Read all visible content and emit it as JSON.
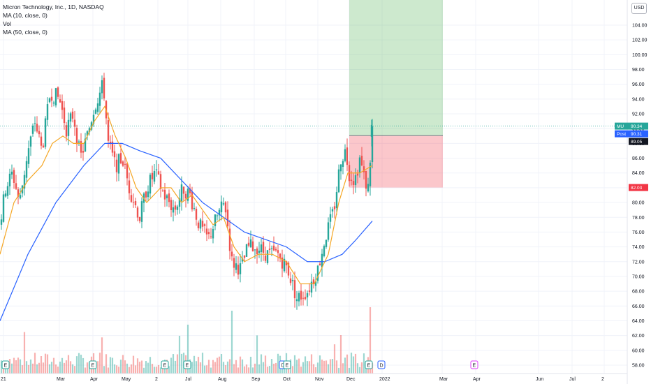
{
  "legend": {
    "title": "Micron Technology, Inc., 1D, NASDAQ",
    "ma10": "MA (10, close, 0)",
    "vol": "Vol",
    "ma50": "MA (50, close, 0)"
  },
  "currency": "USD",
  "chart_data": {
    "type": "candlestick",
    "symbol": "MU",
    "interval": "1D",
    "exchange": "NASDAQ",
    "ylim": [
      57,
      106
    ],
    "y_ticks": [
      "58.00",
      "60.00",
      "62.00",
      "64.00",
      "66.00",
      "68.00",
      "70.00",
      "72.00",
      "74.00",
      "76.00",
      "78.00",
      "80.00",
      "82.00",
      "84.00",
      "86.00",
      "88.00",
      "90.00",
      "92.00",
      "94.00",
      "96.00",
      "98.00",
      "100.00",
      "102.00",
      "104.00"
    ],
    "x_ticks": [
      "21",
      "Mar",
      "Apr",
      "May",
      "2",
      "Jul",
      "Aug",
      "Sep",
      "Oct",
      "Nov",
      "Dec",
      "2022",
      "Mar",
      "Apr",
      "Jun",
      "Jul",
      "2"
    ],
    "key_points": [
      {
        "t": 0,
        "p": 77
      },
      {
        "t": 8,
        "p": 82
      },
      {
        "t": 18,
        "p": 84
      },
      {
        "t": 28,
        "p": 80
      },
      {
        "t": 38,
        "p": 86
      },
      {
        "t": 50,
        "p": 91
      },
      {
        "t": 60,
        "p": 87
      },
      {
        "t": 72,
        "p": 95
      },
      {
        "t": 85,
        "p": 94
      },
      {
        "t": 95,
        "p": 90
      },
      {
        "t": 105,
        "p": 92
      },
      {
        "t": 115,
        "p": 86
      },
      {
        "t": 125,
        "p": 89
      },
      {
        "t": 135,
        "p": 93
      },
      {
        "t": 148,
        "p": 96
      },
      {
        "t": 155,
        "p": 88
      },
      {
        "t": 165,
        "p": 85
      },
      {
        "t": 175,
        "p": 86
      },
      {
        "t": 185,
        "p": 82
      },
      {
        "t": 200,
        "p": 78
      },
      {
        "t": 210,
        "p": 82
      },
      {
        "t": 222,
        "p": 84
      },
      {
        "t": 235,
        "p": 81
      },
      {
        "t": 250,
        "p": 79
      },
      {
        "t": 262,
        "p": 82
      },
      {
        "t": 272,
        "p": 81
      },
      {
        "t": 285,
        "p": 77
      },
      {
        "t": 298,
        "p": 75
      },
      {
        "t": 310,
        "p": 78
      },
      {
        "t": 322,
        "p": 80
      },
      {
        "t": 332,
        "p": 72
      },
      {
        "t": 345,
        "p": 71
      },
      {
        "t": 355,
        "p": 74
      },
      {
        "t": 368,
        "p": 74
      },
      {
        "t": 382,
        "p": 73
      },
      {
        "t": 398,
        "p": 73
      },
      {
        "t": 412,
        "p": 71
      },
      {
        "t": 425,
        "p": 67
      },
      {
        "t": 440,
        "p": 68
      },
      {
        "t": 455,
        "p": 71
      },
      {
        "t": 465,
        "p": 75
      },
      {
        "t": 478,
        "p": 79
      },
      {
        "t": 488,
        "p": 86
      },
      {
        "t": 495,
        "p": 87
      },
      {
        "t": 500,
        "p": 84
      },
      {
        "t": 508,
        "p": 83
      },
      {
        "t": 515,
        "p": 86
      },
      {
        "t": 522,
        "p": 83
      },
      {
        "t": 527,
        "p": 82
      },
      {
        "t": 533,
        "p": 90
      }
    ],
    "ma10_points": [
      {
        "t": 0,
        "p": 73
      },
      {
        "t": 20,
        "p": 80
      },
      {
        "t": 40,
        "p": 83
      },
      {
        "t": 60,
        "p": 85
      },
      {
        "t": 75,
        "p": 88
      },
      {
        "t": 90,
        "p": 89
      },
      {
        "t": 105,
        "p": 88
      },
      {
        "t": 120,
        "p": 88
      },
      {
        "t": 135,
        "p": 91
      },
      {
        "t": 150,
        "p": 93
      },
      {
        "t": 165,
        "p": 89
      },
      {
        "t": 180,
        "p": 86
      },
      {
        "t": 195,
        "p": 82
      },
      {
        "t": 210,
        "p": 80
      },
      {
        "t": 230,
        "p": 82
      },
      {
        "t": 245,
        "p": 82
      },
      {
        "t": 260,
        "p": 80
      },
      {
        "t": 275,
        "p": 81
      },
      {
        "t": 290,
        "p": 79
      },
      {
        "t": 305,
        "p": 77
      },
      {
        "t": 320,
        "p": 78
      },
      {
        "t": 335,
        "p": 74
      },
      {
        "t": 350,
        "p": 72
      },
      {
        "t": 370,
        "p": 73
      },
      {
        "t": 390,
        "p": 73
      },
      {
        "t": 410,
        "p": 72
      },
      {
        "t": 430,
        "p": 69
      },
      {
        "t": 450,
        "p": 69
      },
      {
        "t": 470,
        "p": 73
      },
      {
        "t": 485,
        "p": 80
      },
      {
        "t": 498,
        "p": 84
      },
      {
        "t": 515,
        "p": 84
      },
      {
        "t": 533,
        "p": 85
      }
    ],
    "ma50_points": [
      {
        "t": 0,
        "p": 64
      },
      {
        "t": 40,
        "p": 73
      },
      {
        "t": 80,
        "p": 80
      },
      {
        "t": 120,
        "p": 85
      },
      {
        "t": 150,
        "p": 88
      },
      {
        "t": 175,
        "p": 88
      },
      {
        "t": 200,
        "p": 87
      },
      {
        "t": 230,
        "p": 86
      },
      {
        "t": 260,
        "p": 83
      },
      {
        "t": 290,
        "p": 80
      },
      {
        "t": 320,
        "p": 78
      },
      {
        "t": 350,
        "p": 76
      },
      {
        "t": 380,
        "p": 75
      },
      {
        "t": 410,
        "p": 74
      },
      {
        "t": 440,
        "p": 72
      },
      {
        "t": 465,
        "p": 72
      },
      {
        "t": 490,
        "p": 73
      },
      {
        "t": 510,
        "p": 75
      },
      {
        "t": 533,
        "p": 77.5
      }
    ],
    "position": {
      "entry": 89.05,
      "target_top": 106,
      "stop": 82.03,
      "current": 90.34
    },
    "badges": [
      {
        "label": "MU",
        "value": "90.34",
        "color": "#26a69a"
      },
      {
        "label": "Post",
        "value": "90.31",
        "color": "#2962ff"
      },
      {
        "label": "",
        "value": "89.05",
        "color": "#131722"
      },
      {
        "label": "",
        "value": "82.03",
        "color": "#f23645"
      }
    ],
    "events": [
      "E",
      "E",
      "E",
      "E",
      "D",
      "E",
      "E",
      "D",
      "E"
    ]
  }
}
